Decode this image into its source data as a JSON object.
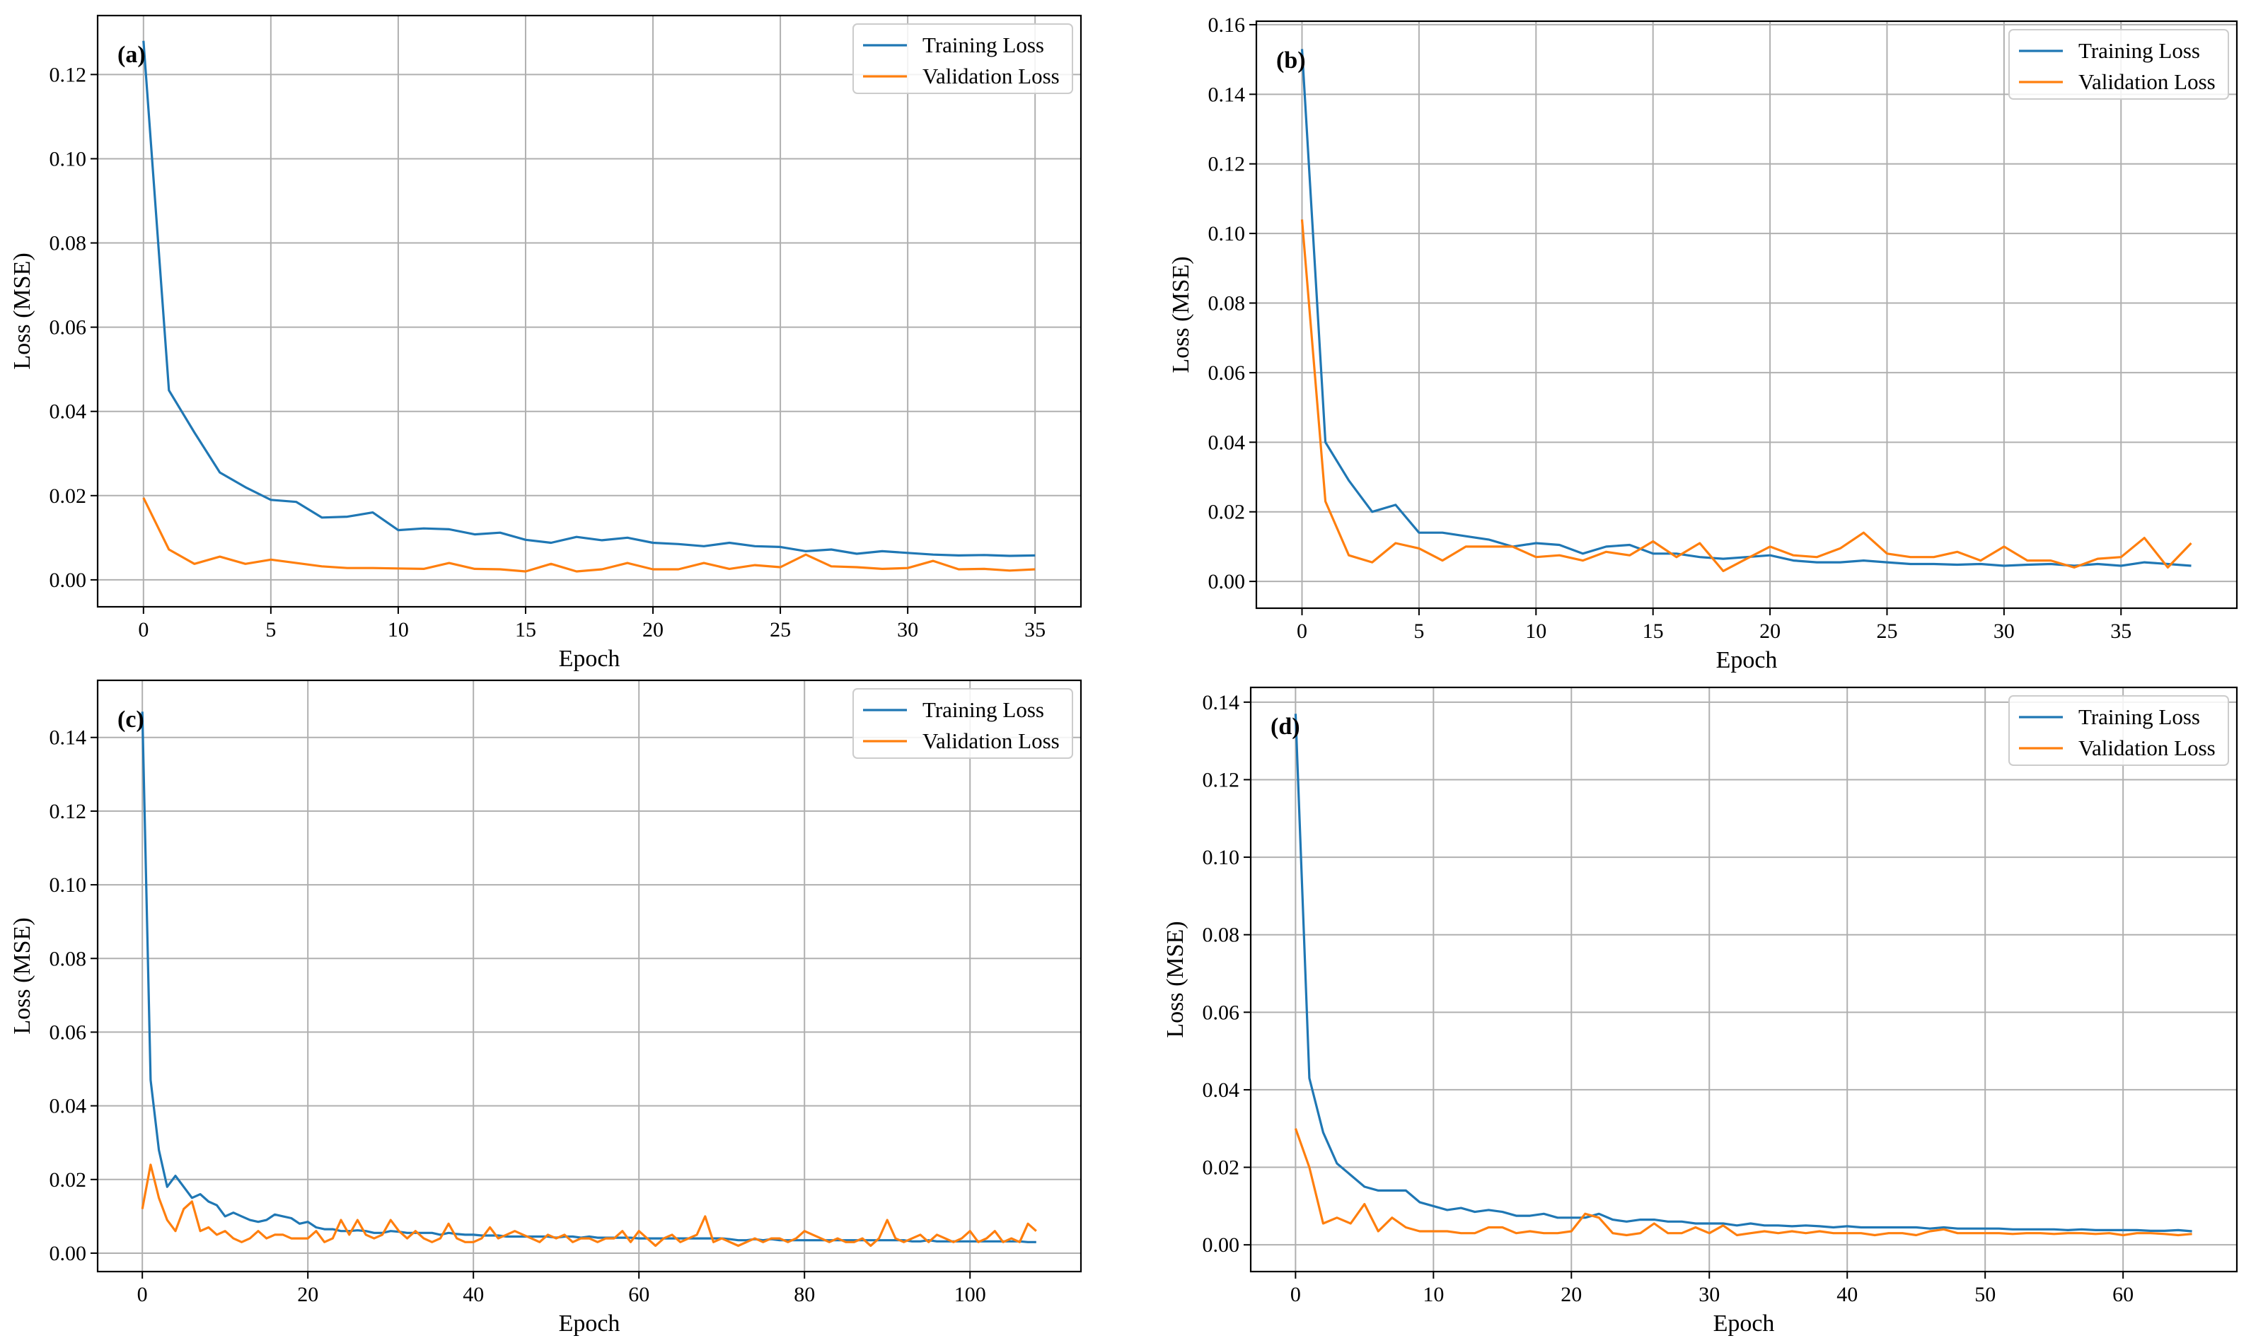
{
  "colors": {
    "training": "#1f77b4",
    "validation": "#ff7f0e",
    "grid": "#b0b0b0"
  },
  "chart_data": [
    {
      "type": "line",
      "panel_label": "(a)",
      "xlabel": "Epoch",
      "ylabel": "Loss (MSE)",
      "xlim": [
        -1.8,
        36.8
      ],
      "ylim": [
        -0.0064,
        0.134
      ],
      "xticks": [
        0,
        5,
        10,
        15,
        20,
        25,
        30,
        35
      ],
      "yticks": [
        0.0,
        0.02,
        0.04,
        0.06,
        0.08,
        0.1,
        0.12
      ],
      "xtick_labels": [
        "0",
        "5",
        "10",
        "15",
        "20",
        "25",
        "30",
        "35"
      ],
      "ytick_labels": [
        "0.00",
        "0.02",
        "0.04",
        "0.06",
        "0.08",
        "0.10",
        "0.12"
      ],
      "grid": true,
      "legend_position": "top-right",
      "series": [
        {
          "name": "Training Loss",
          "values": [
            0.128,
            0.045,
            0.035,
            0.0255,
            0.022,
            0.019,
            0.0185,
            0.0148,
            0.015,
            0.016,
            0.0118,
            0.0122,
            0.012,
            0.0108,
            0.0112,
            0.0095,
            0.0088,
            0.0102,
            0.0094,
            0.01,
            0.0088,
            0.0085,
            0.008,
            0.0088,
            0.008,
            0.0078,
            0.0068,
            0.0072,
            0.0062,
            0.0068,
            0.0064,
            0.006,
            0.0058,
            0.0059,
            0.0057,
            0.0058
          ]
        },
        {
          "name": "Validation Loss",
          "values": [
            0.0195,
            0.0072,
            0.0038,
            0.0055,
            0.0038,
            0.0048,
            0.004,
            0.0032,
            0.0028,
            0.0028,
            0.0027,
            0.0026,
            0.004,
            0.0026,
            0.0025,
            0.002,
            0.0038,
            0.002,
            0.0025,
            0.004,
            0.0025,
            0.0025,
            0.004,
            0.0026,
            0.0035,
            0.003,
            0.006,
            0.0032,
            0.003,
            0.0026,
            0.0028,
            0.0045,
            0.0025,
            0.0026,
            0.0022,
            0.0025
          ]
        }
      ]
    },
    {
      "type": "line",
      "panel_label": "(b)",
      "xlabel": "Epoch",
      "ylabel": "Loss (MSE)",
      "xlim": [
        -1.95,
        39.95
      ],
      "ylim": [
        -0.0077,
        0.161
      ],
      "xticks": [
        0,
        5,
        10,
        15,
        20,
        25,
        30,
        35
      ],
      "yticks": [
        0.0,
        0.02,
        0.04,
        0.06,
        0.08,
        0.1,
        0.12,
        0.14,
        0.16
      ],
      "xtick_labels": [
        "0",
        "5",
        "10",
        "15",
        "20",
        "25",
        "30",
        "35"
      ],
      "ytick_labels": [
        "0.00",
        "0.02",
        "0.04",
        "0.06",
        "0.08",
        "0.10",
        "0.12",
        "0.14",
        "0.16"
      ],
      "grid": true,
      "legend_position": "top-right",
      "series": [
        {
          "name": "Training Loss",
          "values": [
            0.153,
            0.04,
            0.029,
            0.02,
            0.022,
            0.014,
            0.014,
            0.013,
            0.012,
            0.01,
            0.011,
            0.0105,
            0.008,
            0.01,
            0.0105,
            0.008,
            0.008,
            0.007,
            0.0065,
            0.007,
            0.0075,
            0.006,
            0.0055,
            0.0055,
            0.006,
            0.0055,
            0.005,
            0.005,
            0.0048,
            0.005,
            0.0045,
            0.0048,
            0.005,
            0.0045,
            0.005,
            0.0045,
            0.0055,
            0.005,
            0.0045
          ]
        },
        {
          "name": "Validation Loss",
          "values": [
            0.104,
            0.023,
            0.0075,
            0.0055,
            0.011,
            0.0095,
            0.006,
            0.01,
            0.01,
            0.01,
            0.007,
            0.0075,
            0.006,
            0.0085,
            0.0075,
            0.0115,
            0.007,
            0.011,
            0.003,
            0.0065,
            0.01,
            0.0075,
            0.007,
            0.0095,
            0.014,
            0.008,
            0.007,
            0.007,
            0.0085,
            0.006,
            0.01,
            0.006,
            0.006,
            0.004,
            0.0065,
            0.007,
            0.0125,
            0.004,
            0.011
          ]
        }
      ]
    },
    {
      "type": "line",
      "panel_label": "(c)",
      "xlabel": "Epoch",
      "ylabel": "Loss (MSE)",
      "xlim": [
        -5.4,
        113.4
      ],
      "ylim": [
        -0.005,
        0.1555
      ],
      "xticks": [
        0,
        20,
        40,
        60,
        80,
        100
      ],
      "yticks": [
        0.0,
        0.02,
        0.04,
        0.06,
        0.08,
        0.1,
        0.12,
        0.14
      ],
      "xtick_labels": [
        "0",
        "20",
        "40",
        "60",
        "80",
        "100"
      ],
      "ytick_labels": [
        "0.00",
        "0.02",
        "0.04",
        "0.06",
        "0.08",
        "0.10",
        "0.12",
        "0.14"
      ],
      "grid": true,
      "legend_position": "top-right",
      "series": [
        {
          "name": "Training Loss",
          "values": [
            0.147,
            0.047,
            0.028,
            0.018,
            0.021,
            0.018,
            0.015,
            0.016,
            0.014,
            0.013,
            0.01,
            0.011,
            0.01,
            0.009,
            0.0085,
            0.009,
            0.0105,
            0.01,
            0.0095,
            0.008,
            0.0085,
            0.007,
            0.0065,
            0.0065,
            0.006,
            0.006,
            0.0062,
            0.006,
            0.0055,
            0.0055,
            0.006,
            0.0058,
            0.0055,
            0.0055,
            0.0055,
            0.0055,
            0.005,
            0.0055,
            0.0052,
            0.005,
            0.005,
            0.0048,
            0.0048,
            0.0048,
            0.0045,
            0.0045,
            0.0045,
            0.0045,
            0.0045,
            0.0045,
            0.0042,
            0.0045,
            0.0045,
            0.0042,
            0.0045,
            0.0042,
            0.0042,
            0.0042,
            0.0042,
            0.0042,
            0.004,
            0.004,
            0.004,
            0.004,
            0.004,
            0.004,
            0.004,
            0.004,
            0.004,
            0.004,
            0.004,
            0.0038,
            0.0035,
            0.0035,
            0.0038,
            0.0035,
            0.0038,
            0.0035,
            0.0035,
            0.0035,
            0.0035,
            0.0035,
            0.0035,
            0.0035,
            0.0035,
            0.0035,
            0.0035,
            0.0035,
            0.0035,
            0.0035,
            0.0035,
            0.0035,
            0.0035,
            0.0032,
            0.0032,
            0.0035,
            0.0032,
            0.0032,
            0.0032,
            0.0032,
            0.0032,
            0.0032,
            0.0032,
            0.0032,
            0.0032,
            0.0032,
            0.0032,
            0.003,
            0.003
          ]
        },
        {
          "name": "Validation Loss",
          "values": [
            0.012,
            0.024,
            0.015,
            0.009,
            0.006,
            0.012,
            0.014,
            0.006,
            0.007,
            0.005,
            0.006,
            0.004,
            0.003,
            0.004,
            0.006,
            0.004,
            0.005,
            0.005,
            0.004,
            0.004,
            0.004,
            0.006,
            0.003,
            0.004,
            0.009,
            0.005,
            0.009,
            0.005,
            0.004,
            0.005,
            0.009,
            0.006,
            0.004,
            0.006,
            0.004,
            0.003,
            0.004,
            0.008,
            0.004,
            0.003,
            0.003,
            0.004,
            0.007,
            0.004,
            0.005,
            0.006,
            0.005,
            0.004,
            0.003,
            0.005,
            0.004,
            0.005,
            0.003,
            0.004,
            0.004,
            0.003,
            0.004,
            0.004,
            0.006,
            0.003,
            0.006,
            0.004,
            0.002,
            0.004,
            0.005,
            0.003,
            0.004,
            0.005,
            0.01,
            0.003,
            0.004,
            0.003,
            0.002,
            0.003,
            0.004,
            0.003,
            0.004,
            0.004,
            0.003,
            0.004,
            0.006,
            0.005,
            0.004,
            0.003,
            0.004,
            0.003,
            0.003,
            0.004,
            0.002,
            0.004,
            0.009,
            0.004,
            0.003,
            0.004,
            0.005,
            0.003,
            0.005,
            0.004,
            0.003,
            0.004,
            0.006,
            0.003,
            0.004,
            0.006,
            0.003,
            0.004,
            0.003,
            0.008,
            0.006
          ]
        }
      ]
    },
    {
      "type": "line",
      "panel_label": "(d)",
      "xlabel": "Epoch",
      "ylabel": "Loss (MSE)",
      "xlim": [
        -3.25,
        68.25
      ],
      "ylim": [
        -0.0069,
        0.1438
      ],
      "xticks": [
        0,
        10,
        20,
        30,
        40,
        50,
        60
      ],
      "yticks": [
        0.0,
        0.02,
        0.04,
        0.06,
        0.08,
        0.1,
        0.12,
        0.14
      ],
      "xtick_labels": [
        "0",
        "10",
        "20",
        "30",
        "40",
        "50",
        "60"
      ],
      "ytick_labels": [
        "0.00",
        "0.02",
        "0.04",
        "0.06",
        "0.08",
        "0.10",
        "0.12",
        "0.14"
      ],
      "grid": true,
      "legend_position": "top-right",
      "series": [
        {
          "name": "Training Loss",
          "values": [
            0.137,
            0.043,
            0.029,
            0.021,
            0.018,
            0.015,
            0.014,
            0.014,
            0.014,
            0.011,
            0.01,
            0.009,
            0.0095,
            0.0085,
            0.009,
            0.0085,
            0.0075,
            0.0075,
            0.008,
            0.007,
            0.007,
            0.007,
            0.008,
            0.0065,
            0.006,
            0.0065,
            0.0065,
            0.006,
            0.006,
            0.0055,
            0.0055,
            0.0055,
            0.005,
            0.0055,
            0.005,
            0.005,
            0.0048,
            0.005,
            0.0048,
            0.0045,
            0.0048,
            0.0045,
            0.0045,
            0.0045,
            0.0045,
            0.0045,
            0.0042,
            0.0045,
            0.0042,
            0.0042,
            0.0042,
            0.0042,
            0.004,
            0.004,
            0.004,
            0.004,
            0.0038,
            0.004,
            0.0038,
            0.0038,
            0.0038,
            0.0038,
            0.0036,
            0.0036,
            0.0038,
            0.0035
          ]
        },
        {
          "name": "Validation Loss",
          "values": [
            0.03,
            0.02,
            0.0055,
            0.007,
            0.0055,
            0.0105,
            0.0035,
            0.007,
            0.0045,
            0.0035,
            0.0035,
            0.0035,
            0.003,
            0.003,
            0.0045,
            0.0045,
            0.003,
            0.0035,
            0.003,
            0.003,
            0.0035,
            0.008,
            0.007,
            0.003,
            0.0025,
            0.003,
            0.0055,
            0.003,
            0.003,
            0.0045,
            0.003,
            0.005,
            0.0025,
            0.003,
            0.0035,
            0.003,
            0.0035,
            0.003,
            0.0035,
            0.003,
            0.003,
            0.003,
            0.0025,
            0.003,
            0.003,
            0.0025,
            0.0035,
            0.004,
            0.003,
            0.003,
            0.003,
            0.003,
            0.0028,
            0.003,
            0.003,
            0.0028,
            0.003,
            0.003,
            0.0028,
            0.003,
            0.0025,
            0.003,
            0.003,
            0.0028,
            0.0025,
            0.0028
          ]
        }
      ]
    }
  ]
}
